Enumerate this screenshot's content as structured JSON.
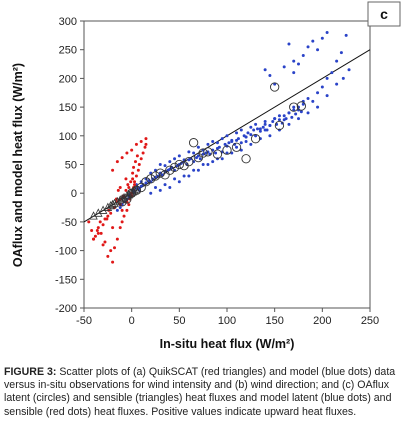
{
  "chart_data": {
    "type": "scatter",
    "panel_label": "c",
    "xlabel": "In-situ heat flux (W/m²)",
    "ylabel": "OAflux and model heat flux (W/m²)",
    "xlim": [
      -50,
      250
    ],
    "ylim": [
      -200,
      300
    ],
    "xticks": [
      -50,
      0,
      50,
      100,
      150,
      200,
      250
    ],
    "yticks": [
      -200,
      -150,
      -100,
      -50,
      0,
      50,
      100,
      150,
      200,
      250,
      300
    ],
    "grid": false,
    "reference_line": {
      "x": [
        -50,
        250
      ],
      "y": [
        -50,
        250
      ]
    },
    "colors": {
      "latent_model": "#2a43c8",
      "sensible_model": "#e01818",
      "oaflux_marker": "#333333"
    },
    "series": [
      {
        "key": "latent_model",
        "marker": "dot",
        "x": [
          -15,
          -12,
          -10,
          -8,
          -5,
          -3,
          -2,
          0,
          2,
          3,
          5,
          7,
          8,
          10,
          12,
          15,
          18,
          20,
          22,
          25,
          28,
          30,
          32,
          35,
          38,
          40,
          42,
          45,
          48,
          50,
          52,
          55,
          58,
          60,
          62,
          65,
          68,
          70,
          72,
          75,
          78,
          80,
          82,
          85,
          88,
          90,
          92,
          95,
          98,
          100,
          102,
          105,
          108,
          110,
          112,
          115,
          118,
          120,
          122,
          125,
          128,
          130,
          132,
          135,
          138,
          140,
          142,
          145,
          148,
          150,
          152,
          155,
          158,
          160,
          162,
          165,
          168,
          170,
          172,
          175,
          178,
          180,
          185,
          190,
          195,
          200,
          205,
          210,
          215,
          220,
          225,
          -5,
          0,
          5,
          10,
          15,
          20,
          25,
          30,
          35,
          40,
          45,
          50,
          55,
          60,
          65,
          70,
          75,
          80,
          85,
          90,
          95,
          100,
          105,
          110,
          115,
          120,
          125,
          130,
          135,
          140,
          145,
          150,
          155,
          160,
          165,
          170,
          175,
          180,
          30,
          40,
          50,
          60,
          70,
          80,
          90,
          100,
          110,
          120,
          130,
          140,
          20,
          25,
          35,
          45,
          55,
          65,
          75,
          85,
          95,
          105,
          115,
          125,
          135,
          145,
          155,
          165,
          175,
          185,
          195,
          205,
          215,
          222,
          228,
          170,
          175,
          180,
          185,
          190,
          195,
          200,
          205,
          160,
          165,
          170,
          150,
          145,
          140
        ],
        "y": [
          -30,
          -25,
          -20,
          -15,
          -10,
          -5,
          -2,
          0,
          5,
          2,
          8,
          10,
          5,
          12,
          15,
          18,
          22,
          20,
          25,
          28,
          30,
          35,
          32,
          38,
          40,
          42,
          45,
          40,
          48,
          50,
          52,
          55,
          50,
          58,
          60,
          55,
          62,
          65,
          60,
          68,
          70,
          72,
          68,
          75,
          70,
          78,
          80,
          72,
          85,
          82,
          88,
          90,
          85,
          92,
          95,
          88,
          100,
          98,
          105,
          102,
          110,
          100,
          112,
          108,
          115,
          120,
          110,
          118,
          125,
          130,
          120,
          128,
          122,
          135,
          130,
          140,
          132,
          145,
          138,
          150,
          142,
          155,
          165,
          160,
          175,
          185,
          200,
          210,
          230,
          245,
          275,
          -10,
          -5,
          15,
          20,
          25,
          35,
          40,
          50,
          48,
          55,
          60,
          65,
          58,
          72,
          70,
          80,
          75,
          85,
          90,
          88,
          95,
          100,
          92,
          105,
          110,
          98,
          115,
          120,
          112,
          125,
          118,
          130,
          135,
          128,
          140,
          150,
          145,
          160,
          5,
          10,
          20,
          30,
          40,
          50,
          60,
          70,
          80,
          90,
          100,
          110,
          0,
          10,
          15,
          25,
          30,
          40,
          50,
          55,
          60,
          70,
          75,
          85,
          95,
          100,
          110,
          120,
          130,
          140,
          150,
          170,
          190,
          200,
          215,
          210,
          225,
          240,
          255,
          265,
          250,
          270,
          280,
          220,
          260,
          230,
          190,
          205,
          215
        ],
        "name": ""
      },
      {
        "key": "sensible_model",
        "marker": "dot",
        "x": [
          -45,
          -42,
          -40,
          -38,
          -35,
          -32,
          -30,
          -28,
          -25,
          -22,
          -20,
          -18,
          -15,
          -12,
          -10,
          -8,
          -5,
          -3,
          -2,
          0,
          2,
          3,
          5,
          7,
          8,
          10,
          12,
          14,
          15,
          -20,
          -15,
          -10,
          -5,
          0,
          5,
          10,
          15,
          -25,
          -18,
          -12,
          -6,
          2,
          6,
          -12,
          -8,
          -4,
          1,
          4,
          -16,
          -14,
          -30,
          -28,
          -22,
          -35,
          -20,
          -10,
          -5,
          0,
          3,
          -40,
          -36,
          -33,
          -26,
          -24,
          -18,
          -15,
          -12,
          -9,
          -6,
          -3,
          -1,
          1
        ],
        "y": [
          -50,
          -65,
          -80,
          -75,
          -60,
          -70,
          -90,
          -85,
          -110,
          -100,
          -120,
          -95,
          -80,
          -60,
          -50,
          -40,
          -30,
          -20,
          -10,
          0,
          10,
          20,
          30,
          40,
          50,
          60,
          70,
          80,
          85,
          40,
          55,
          62,
          70,
          75,
          85,
          90,
          95,
          -40,
          -25,
          10,
          25,
          45,
          65,
          -20,
          -5,
          15,
          35,
          55,
          -10,
          5,
          -55,
          -45,
          -35,
          -70,
          -60,
          -30,
          -15,
          -5,
          15,
          -80,
          -65,
          -50,
          -45,
          -30,
          -25,
          -15,
          -10,
          -5,
          5,
          10,
          20,
          25
        ],
        "name": ""
      },
      {
        "key": "oaflux_latent",
        "marker": "circle",
        "x": [
          -10,
          -5,
          0,
          5,
          10,
          15,
          20,
          25,
          30,
          35,
          40,
          45,
          50,
          55,
          60,
          65,
          70,
          75,
          80,
          90,
          100,
          110,
          120,
          130,
          150,
          155,
          170,
          178
        ],
        "y": [
          -15,
          -10,
          0,
          5,
          10,
          20,
          25,
          30,
          35,
          32,
          40,
          45,
          50,
          48,
          55,
          88,
          62,
          70,
          72,
          68,
          75,
          80,
          60,
          95,
          185,
          118,
          150,
          152
        ],
        "name": ""
      },
      {
        "key": "oaflux_sensible",
        "marker": "triangle",
        "x": [
          -40,
          -35,
          -30,
          -25,
          -22,
          -20,
          -18,
          -15,
          -12,
          -10,
          -8,
          -5,
          -3,
          -1,
          1,
          3,
          5
        ],
        "y": [
          -40,
          -35,
          -30,
          -25,
          -22,
          -20,
          -18,
          -15,
          -12,
          -10,
          -8,
          -5,
          -3,
          0,
          2,
          4,
          6
        ],
        "name": ""
      }
    ]
  },
  "caption": {
    "head": "FIGURE 3:",
    "body": "Scatter plots of (a) QuikSCAT (red triangles) and model (blue dots) data versus in-situ observations for wind intensity and (b) wind direction; and (c) OAflux latent (circles) and sensible (triangles) heat fluxes and model latent (blue dots) and sensible (red dots) heat fluxes. Positive values indicate upward heat fluxes."
  }
}
